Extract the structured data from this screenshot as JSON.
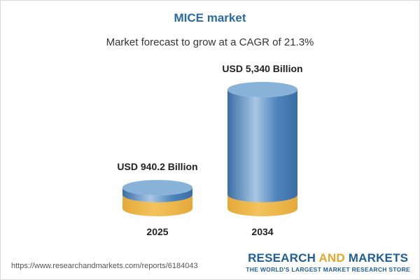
{
  "header": {
    "title": "MICE market",
    "subtitle": "Market forecast to grow at a CAGR of 21.3%"
  },
  "chart_data": {
    "type": "bar",
    "categories": [
      "2025",
      "2034"
    ],
    "values": [
      940.2,
      5340
    ],
    "value_labels": [
      "USD 940.2 Billion",
      "USD 5,340 Billion"
    ],
    "title": "MICE market",
    "subtitle": "Market forecast to grow at a CAGR of 21.3%",
    "xlabel": "",
    "ylabel": "",
    "ylim": [
      0,
      5340
    ],
    "grid": false,
    "legend": "none",
    "colors": {
      "base": "#f3c35c",
      "base_dark": "#e5a93a",
      "base_top": "#fbe2a3",
      "growth": "#4f85bd",
      "growth_dark": "#3a6ea4",
      "growth_light": "#a9c7e4",
      "growth_top": "#89b2d8"
    }
  },
  "footer": {
    "source_url": "https://www.researchandmarkets.com/reports/6184043",
    "brand_research": "RESEARCH",
    "brand_and": "AND",
    "brand_markets": "MARKETS",
    "brand_tagline": "THE WORLD'S LARGEST MARKET RESEARCH STORE"
  }
}
